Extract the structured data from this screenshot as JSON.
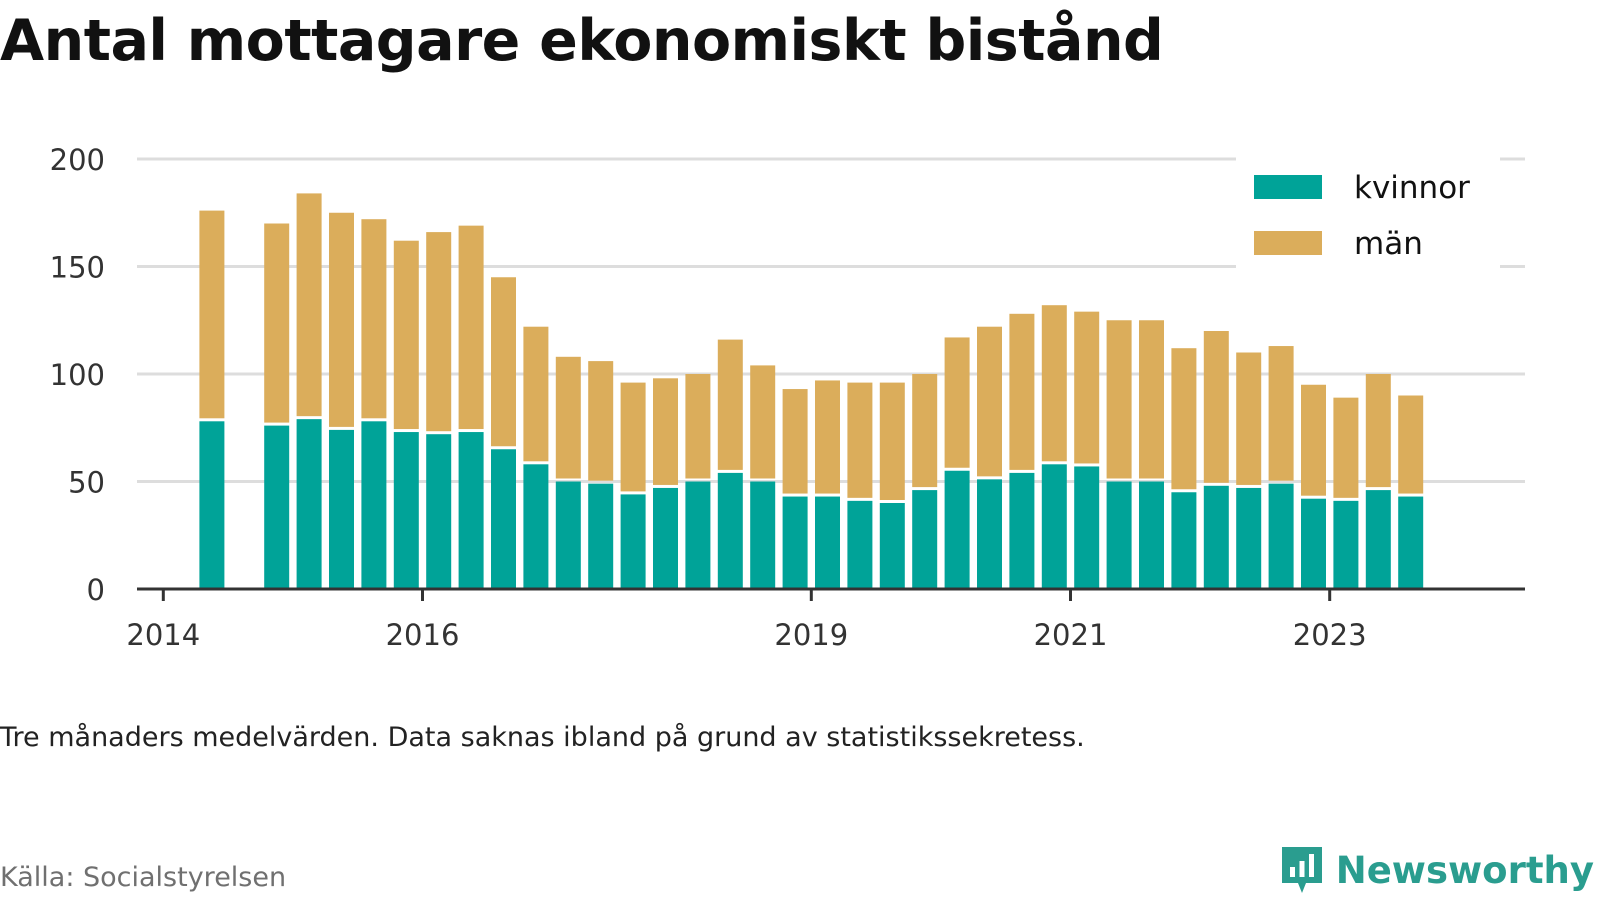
{
  "title": "Antal mottagare ekonomiskt bistånd",
  "note": "Tre månaders medelvärden. Data saknas ibland på grund av statistikssekretess.",
  "source": "Källa: Socialstyrelsen",
  "brand": {
    "name": "Newsworthy",
    "icon": "newsworthy-logo-icon",
    "color": "#2a9d8f"
  },
  "colors": {
    "kvinnor": "#00a398",
    "man": "#dbad5b",
    "grid": "#dddddd",
    "axis": "#333333"
  },
  "chart_data": {
    "type": "bar",
    "stacked": true,
    "x_ticks": [
      "2014",
      "2016",
      "2019",
      "2021",
      "2023"
    ],
    "y_ticks": [
      "0",
      "50",
      "100",
      "150",
      "200"
    ],
    "ylim": [
      0,
      200
    ],
    "grid": true,
    "legend_position": "top-right",
    "categories": [
      "2014-Q1",
      "2014-Q2",
      "2014-Q3",
      "2014-Q4",
      "2015-Q1",
      "2015-Q2",
      "2015-Q3",
      "2015-Q4",
      "2016-Q1",
      "2016-Q2",
      "2016-Q3",
      "2016-Q4",
      "2017-Q1",
      "2017-Q2",
      "2017-Q3",
      "2017-Q4",
      "2018-Q1",
      "2018-Q2",
      "2018-Q3",
      "2018-Q4",
      "2019-Q1",
      "2019-Q2",
      "2019-Q3",
      "2019-Q4",
      "2020-Q1",
      "2020-Q2",
      "2020-Q3",
      "2020-Q4",
      "2021-Q1",
      "2021-Q2",
      "2021-Q3",
      "2021-Q4",
      "2022-Q1",
      "2022-Q2",
      "2022-Q3",
      "2022-Q4",
      "2023-Q1",
      "2023-Q2",
      "2023-Q3",
      "2023-Q4"
    ],
    "series": [
      {
        "name": "kvinnor",
        "values": [
          null,
          78,
          null,
          76,
          79,
          74,
          78,
          73,
          72,
          73,
          65,
          58,
          50,
          49,
          44,
          47,
          50,
          54,
          50,
          43,
          43,
          41,
          40,
          46,
          55,
          51,
          54,
          58,
          57,
          50,
          50,
          45,
          48,
          47,
          49,
          42,
          41,
          46,
          43,
          null
        ]
      },
      {
        "name": "män",
        "values": [
          null,
          98,
          null,
          94,
          105,
          101,
          94,
          89,
          94,
          96,
          80,
          64,
          58,
          57,
          52,
          51,
          50,
          62,
          54,
          50,
          54,
          55,
          56,
          54,
          62,
          71,
          74,
          74,
          72,
          75,
          75,
          67,
          72,
          63,
          64,
          53,
          48,
          54,
          47,
          null
        ]
      }
    ]
  }
}
